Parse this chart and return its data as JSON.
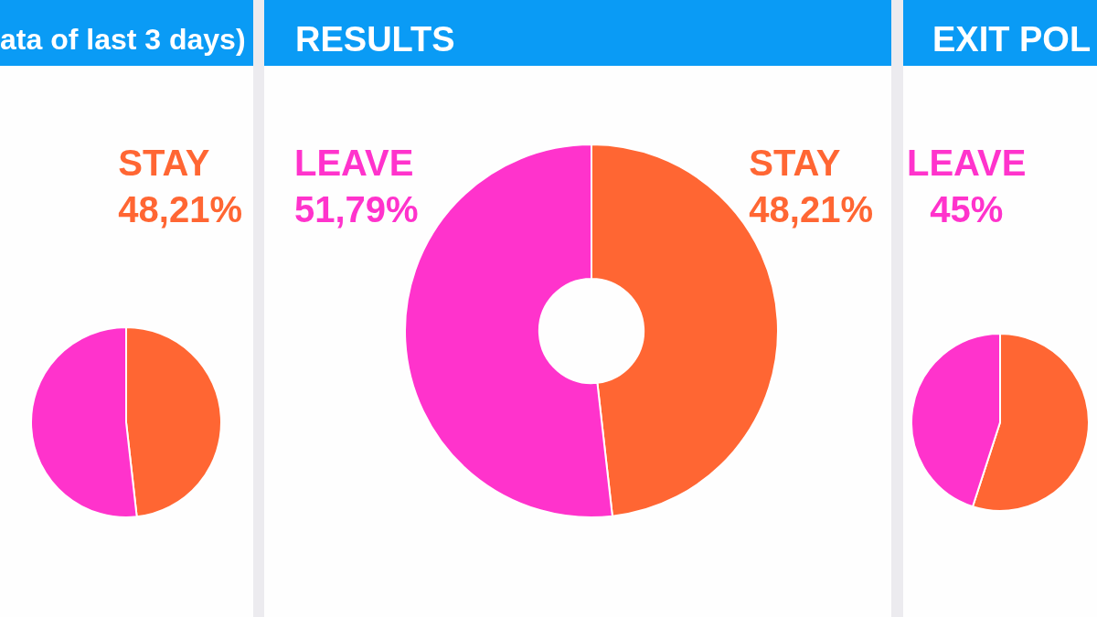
{
  "chart_data": [
    {
      "type": "pie",
      "title": "ata of last 3 days)",
      "categories": [
        "STAY",
        null
      ],
      "values": [
        48.21,
        51.79
      ],
      "colors": [
        "#ff6633",
        "#ff33cc"
      ],
      "value_labels": [
        "48,21%",
        null
      ]
    },
    {
      "type": "donut",
      "title": "RESULTS",
      "categories": [
        "STAY",
        "LEAVE"
      ],
      "values": [
        48.21,
        51.79
      ],
      "colors": [
        "#ff6633",
        "#ff33cc"
      ],
      "value_labels": [
        "48,21%",
        "51,79%"
      ]
    },
    {
      "type": "pie",
      "title": "EXIT POL",
      "categories": [
        null,
        "LEAVE"
      ],
      "values": [
        55,
        45
      ],
      "colors": [
        "#ff6633",
        "#ff33cc"
      ],
      "value_labels": [
        null,
        "45%"
      ]
    }
  ]
}
